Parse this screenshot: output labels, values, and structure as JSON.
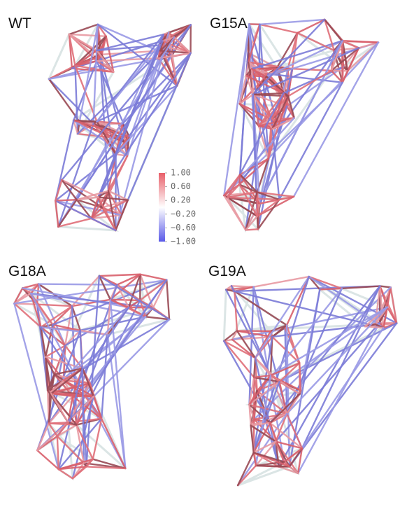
{
  "panels": [
    {
      "label": "WT"
    },
    {
      "label": "G15A"
    },
    {
      "label": "G18A"
    },
    {
      "label": "G19A"
    }
  ],
  "colorbar": {
    "lim": [
      -1,
      1
    ],
    "ticks": [
      {
        "value": 1,
        "label": "1.00"
      },
      {
        "value": 0.6,
        "label": "0.60"
      },
      {
        "value": 0.2,
        "label": "0.20"
      },
      {
        "value": -0.2,
        "label": "−0.20"
      },
      {
        "value": -0.6,
        "label": "−0.60"
      },
      {
        "value": -1,
        "label": "−1.00"
      }
    ]
  }
}
